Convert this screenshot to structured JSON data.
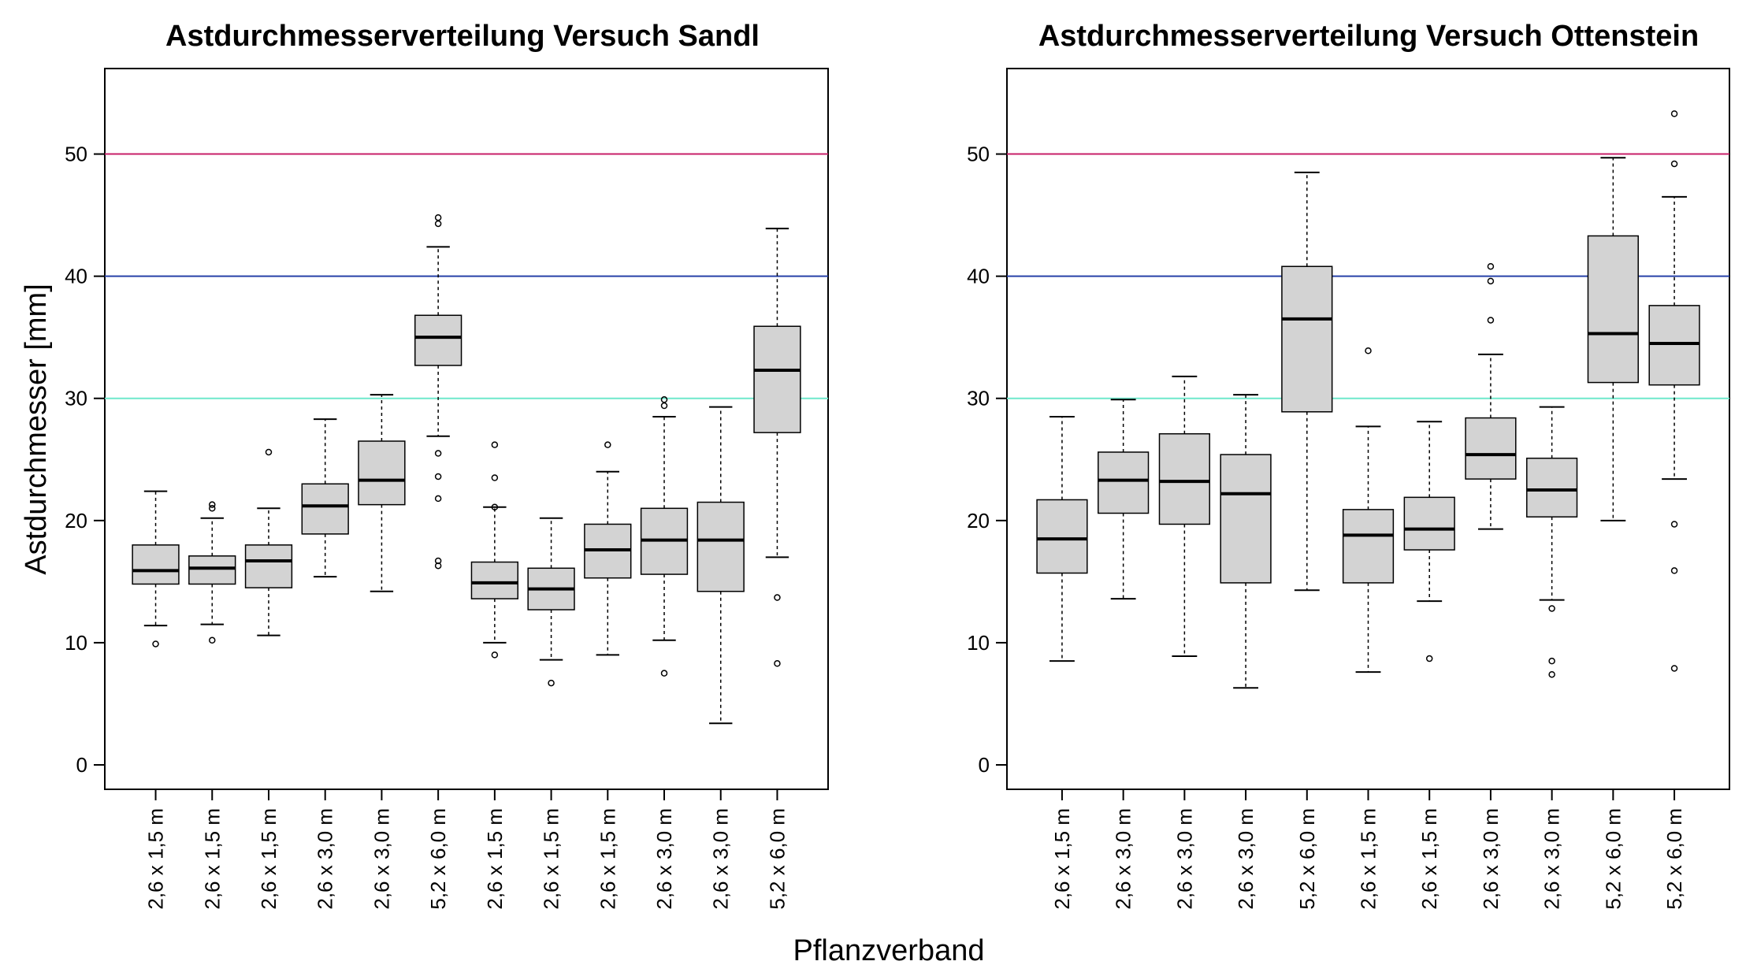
{
  "chart_data": {
    "type": "boxplot",
    "xlabel": "Pflanzverband",
    "ylabel": "Astdurchmesser [mm]",
    "ylim": [
      -2,
      57
    ],
    "yticks": [
      0,
      10,
      20,
      30,
      40,
      50
    ],
    "reference_lines": [
      {
        "y": 50,
        "color": "#c71f68"
      },
      {
        "y": 40,
        "color": "#2741a8"
      },
      {
        "y": 30,
        "color": "#6fe8cc"
      }
    ],
    "colors": {
      "box_fill": "#d3d3d3",
      "box_stroke": "#000000"
    },
    "panels": [
      {
        "title": "Astdurchmesserverteilung Versuch Sandl",
        "categories": [
          "2,6 x 1,5 m",
          "2,6 x 1,5 m",
          "2,6 x 1,5 m",
          "2,6 x 3,0 m",
          "2,6 x 3,0 m",
          "5,2 x 6,0 m",
          "2,6 x 1,5 m",
          "2,6 x 1,5 m",
          "2,6 x 1,5 m",
          "2,6 x 3,0 m",
          "2,6 x 3,0 m",
          "5,2 x 6,0 m"
        ],
        "boxes": [
          {
            "whisker_low": 11.4,
            "q1": 14.8,
            "median": 15.9,
            "q3": 18.0,
            "whisker_high": 22.4,
            "outliers": [
              9.9
            ]
          },
          {
            "whisker_low": 11.5,
            "q1": 14.8,
            "median": 16.1,
            "q3": 17.1,
            "whisker_high": 20.2,
            "outliers": [
              10.2,
              21.0,
              21.3
            ]
          },
          {
            "whisker_low": 10.6,
            "q1": 14.5,
            "median": 16.7,
            "q3": 18.0,
            "whisker_high": 21.0,
            "outliers": [
              25.6
            ]
          },
          {
            "whisker_low": 15.4,
            "q1": 18.9,
            "median": 21.2,
            "q3": 23.0,
            "whisker_high": 28.3,
            "outliers": []
          },
          {
            "whisker_low": 14.2,
            "q1": 21.3,
            "median": 23.3,
            "q3": 26.5,
            "whisker_high": 30.3,
            "outliers": []
          },
          {
            "whisker_low": 26.9,
            "q1": 32.7,
            "median": 35.0,
            "q3": 36.8,
            "whisker_high": 42.4,
            "outliers": [
              16.3,
              16.7,
              21.8,
              23.6,
              25.5,
              44.3,
              44.8
            ]
          },
          {
            "whisker_low": 10.0,
            "q1": 13.6,
            "median": 14.9,
            "q3": 16.6,
            "whisker_high": 21.1,
            "outliers": [
              9.0,
              21.1,
              23.5,
              26.2
            ]
          },
          {
            "whisker_low": 8.6,
            "q1": 12.7,
            "median": 14.4,
            "q3": 16.1,
            "whisker_high": 20.2,
            "outliers": [
              6.7
            ]
          },
          {
            "whisker_low": 9.0,
            "q1": 15.3,
            "median": 17.6,
            "q3": 19.7,
            "whisker_high": 24.0,
            "outliers": [
              26.2
            ]
          },
          {
            "whisker_low": 10.2,
            "q1": 15.6,
            "median": 18.4,
            "q3": 21.0,
            "whisker_high": 28.5,
            "outliers": [
              7.5,
              29.4,
              29.9
            ]
          },
          {
            "whisker_low": 3.4,
            "q1": 14.2,
            "median": 18.4,
            "q3": 21.5,
            "whisker_high": 29.3,
            "outliers": []
          },
          {
            "whisker_low": 17.0,
            "q1": 27.2,
            "median": 32.3,
            "q3": 35.9,
            "whisker_high": 43.9,
            "outliers": [
              8.3,
              13.7
            ]
          }
        ]
      },
      {
        "title": "Astdurchmesserverteilung Versuch Ottenstein",
        "categories": [
          "2,6 x 1,5 m",
          "2,6 x 3,0 m",
          "2,6 x 3,0 m",
          "2,6 x 3,0 m",
          "5,2 x 6,0 m",
          "2,6 x 1,5 m",
          "2,6 x 1,5 m",
          "2,6 x 3,0 m",
          "2,6 x 3,0 m",
          "5,2 x 6,0 m",
          "5,2 x 6,0 m"
        ],
        "boxes": [
          {
            "whisker_low": 8.5,
            "q1": 15.7,
            "median": 18.5,
            "q3": 21.7,
            "whisker_high": 28.5,
            "outliers": []
          },
          {
            "whisker_low": 13.6,
            "q1": 20.6,
            "median": 23.3,
            "q3": 25.6,
            "whisker_high": 29.9,
            "outliers": []
          },
          {
            "whisker_low": 8.9,
            "q1": 19.7,
            "median": 23.2,
            "q3": 27.1,
            "whisker_high": 31.8,
            "outliers": []
          },
          {
            "whisker_low": 6.3,
            "q1": 14.9,
            "median": 22.2,
            "q3": 25.4,
            "whisker_high": 30.3,
            "outliers": []
          },
          {
            "whisker_low": 14.3,
            "q1": 28.9,
            "median": 36.5,
            "q3": 40.8,
            "whisker_high": 48.5,
            "outliers": []
          },
          {
            "whisker_low": 7.6,
            "q1": 14.9,
            "median": 18.8,
            "q3": 20.9,
            "whisker_high": 27.7,
            "outliers": [
              33.9
            ]
          },
          {
            "whisker_low": 13.4,
            "q1": 17.6,
            "median": 19.3,
            "q3": 21.9,
            "whisker_high": 28.1,
            "outliers": [
              8.7
            ]
          },
          {
            "whisker_low": 19.3,
            "q1": 23.4,
            "median": 25.4,
            "q3": 28.4,
            "whisker_high": 33.6,
            "outliers": [
              36.4,
              39.6,
              40.8
            ]
          },
          {
            "whisker_low": 13.5,
            "q1": 20.3,
            "median": 22.5,
            "q3": 25.1,
            "whisker_high": 29.3,
            "outliers": [
              7.4,
              8.5,
              12.8
            ]
          },
          {
            "whisker_low": 20.0,
            "q1": 31.3,
            "median": 35.3,
            "q3": 43.3,
            "whisker_high": 49.7,
            "outliers": []
          },
          {
            "whisker_low": 23.4,
            "q1": 31.1,
            "median": 34.5,
            "q3": 37.6,
            "whisker_high": 46.5,
            "outliers": [
              7.9,
              15.9,
              19.7,
              49.2,
              53.3
            ]
          }
        ]
      }
    ]
  }
}
